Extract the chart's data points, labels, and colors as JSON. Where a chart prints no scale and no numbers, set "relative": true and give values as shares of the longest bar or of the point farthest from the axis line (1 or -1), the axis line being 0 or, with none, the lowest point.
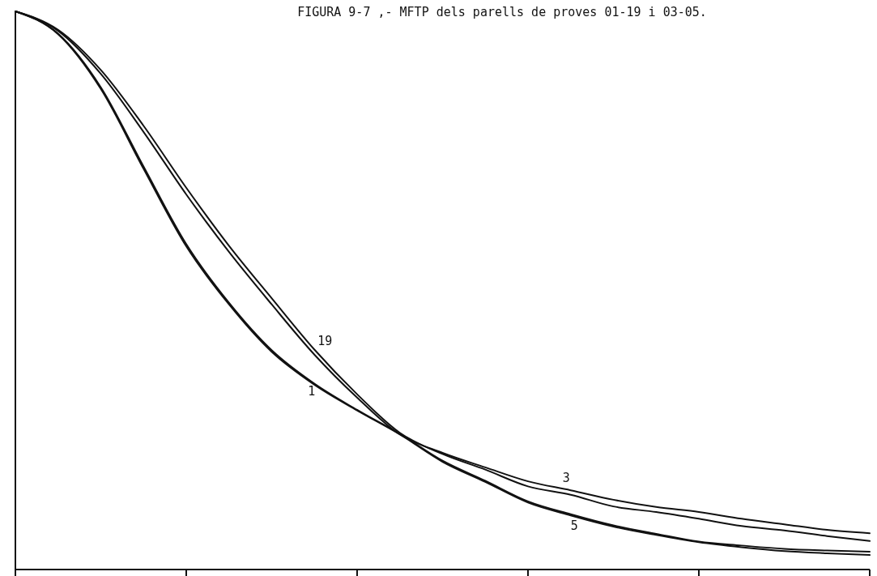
{
  "chart_data": {
    "type": "line",
    "title": "FIGURA 9-7 ,- MFTP dels parells de proves 01-19 i 03-05.",
    "relative": true,
    "legend": false,
    "marker": "none",
    "line_style": "solid",
    "categories": [
      null,
      null,
      null,
      null,
      null,
      null,
      null,
      null,
      null,
      null,
      null,
      null,
      null,
      null,
      null,
      null,
      null,
      null,
      null,
      null,
      null
    ],
    "series": [
      {
        "name": "1",
        "color": "#111111",
        "values": [
          1,
          0.96,
          0.864,
          0.722,
          0.583,
          0.478,
          0.393,
          0.333,
          0.286,
          0.243,
          0.195,
          0.159,
          0.122,
          0.099,
          0.079,
          0.064,
          0.05,
          0.043,
          0.037,
          0.034,
          0.032
        ]
      },
      {
        "name": "19",
        "color": "#111111",
        "values": [
          1,
          0.967,
          0.895,
          0.795,
          0.684,
          0.58,
          0.486,
          0.394,
          0.314,
          0.245,
          0.207,
          0.179,
          0.149,
          0.134,
          0.113,
          0.103,
          0.091,
          0.078,
          0.07,
          0.06,
          0.051
        ]
      },
      {
        "name": "3",
        "color": "#111111",
        "values": [
          1,
          0.965,
          0.888,
          0.784,
          0.672,
          0.569,
          0.475,
          0.385,
          0.308,
          0.242,
          0.209,
          0.183,
          0.158,
          0.142,
          0.125,
          0.112,
          0.103,
          0.091,
          0.081,
          0.071,
          0.065
        ]
      },
      {
        "name": "5",
        "color": "#111111",
        "values": [
          1,
          0.959,
          0.861,
          0.718,
          0.579,
          0.475,
          0.39,
          0.331,
          0.285,
          0.242,
          0.193,
          0.157,
          0.12,
          0.097,
          0.077,
          0.062,
          0.049,
          0.04,
          0.033,
          0.029,
          0.026
        ]
      }
    ]
  }
}
